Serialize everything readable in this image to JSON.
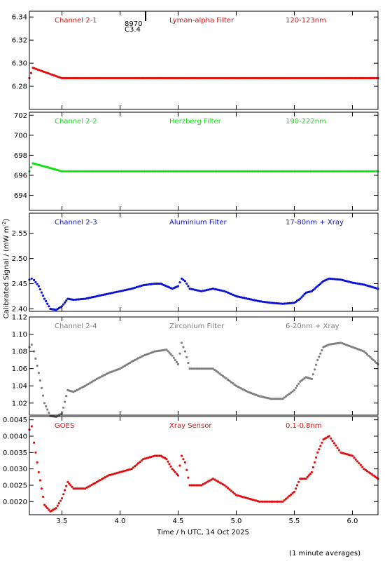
{
  "figure": {
    "ylabel": "Calibrated Signal / (mW m",
    "ylabel_sup": "-2",
    "ylabel_close": ")",
    "xlabel": "Time / h UTC, 14 Oct 2025",
    "footnote": "(1 minute averages)",
    "flare_label_1": "8970",
    "flare_label_2": "C3.4",
    "flare_time": 4.22
  },
  "x_axis": {
    "range": [
      3.22,
      6.22
    ],
    "ticks": [
      3.5,
      4.0,
      4.5,
      5.0,
      5.5,
      6.0
    ],
    "tick_labels": [
      "3.5",
      "4.0",
      "4.5",
      "5.0",
      "5.5",
      "6.0"
    ]
  },
  "chart_data": [
    {
      "type": "scatter",
      "labels": [
        "Channel 2-1",
        "Lyman-alpha Filter",
        "120-123nm"
      ],
      "color": "#e01010",
      "ylim": [
        6.26,
        6.345
      ],
      "yticks": [
        6.28,
        6.3,
        6.32,
        6.34
      ],
      "ytick_labels": [
        "6.28",
        "6.30",
        "6.32",
        "6.34"
      ],
      "x": [
        3.22,
        3.25,
        3.5,
        4.0,
        4.5,
        5.0,
        5.5,
        6.0,
        6.22
      ],
      "y": [
        6.287,
        6.296,
        6.287,
        6.287,
        6.287,
        6.287,
        6.287,
        6.287,
        6.287
      ]
    },
    {
      "type": "scatter",
      "labels": [
        "Channel 2-2",
        "Herzberg Filter",
        "190-222nm"
      ],
      "color": "#10e010",
      "ylim": [
        692.5,
        702.3
      ],
      "yticks": [
        694,
        696,
        698,
        700,
        702
      ],
      "ytick_labels": [
        "694",
        "696",
        "698",
        "700",
        "702"
      ],
      "x": [
        3.22,
        3.25,
        3.5,
        4.0,
        4.5,
        5.0,
        5.5,
        6.0,
        6.22
      ],
      "y": [
        696.4,
        697.2,
        696.4,
        696.4,
        696.4,
        696.4,
        696.4,
        696.4,
        696.4
      ]
    },
    {
      "type": "scatter",
      "labels": [
        "Channel 2-3",
        "Aluminium Filter",
        "17-80nm + Xray"
      ],
      "color": "#0a14d2",
      "ylim": [
        2.395,
        2.59
      ],
      "yticks": [
        2.4,
        2.45,
        2.5,
        2.55
      ],
      "ytick_labels": [
        "2.40",
        "2.45",
        "2.50",
        "2.55"
      ],
      "x": [
        3.22,
        3.24,
        3.26,
        3.3,
        3.35,
        3.4,
        3.45,
        3.5,
        3.55,
        3.6,
        3.7,
        3.8,
        3.9,
        4.0,
        4.1,
        4.2,
        4.3,
        4.35,
        4.4,
        4.45,
        4.5,
        4.53,
        4.56,
        4.6,
        4.7,
        4.8,
        4.9,
        5.0,
        5.1,
        5.2,
        5.3,
        5.4,
        5.5,
        5.55,
        5.6,
        5.65,
        5.7,
        5.75,
        5.8,
        5.9,
        6.0,
        6.1,
        6.22
      ],
      "y": [
        2.458,
        2.46,
        2.457,
        2.445,
        2.42,
        2.4,
        2.398,
        2.405,
        2.42,
        2.418,
        2.42,
        2.425,
        2.43,
        2.435,
        2.44,
        2.447,
        2.45,
        2.45,
        2.445,
        2.44,
        2.445,
        2.46,
        2.455,
        2.44,
        2.435,
        2.44,
        2.435,
        2.425,
        2.42,
        2.415,
        2.412,
        2.41,
        2.412,
        2.42,
        2.432,
        2.435,
        2.445,
        2.455,
        2.46,
        2.458,
        2.452,
        2.448,
        2.44
      ]
    },
    {
      "type": "scatter",
      "labels": [
        "Channel 2-4",
        "Zirconium Filter",
        "6-20nm + Xray"
      ],
      "color": "#7f7f7f",
      "ylim": [
        1.006,
        1.12
      ],
      "yticks": [
        1.02,
        1.04,
        1.06,
        1.08,
        1.1,
        1.12
      ],
      "ytick_labels": [
        "1.02",
        "1.04",
        "1.06",
        "1.08",
        "1.10",
        "1.12"
      ],
      "x": [
        3.22,
        3.24,
        3.26,
        3.3,
        3.35,
        3.4,
        3.45,
        3.5,
        3.55,
        3.6,
        3.7,
        3.8,
        3.9,
        4.0,
        4.1,
        4.2,
        4.3,
        4.4,
        4.45,
        4.5,
        4.53,
        4.56,
        4.6,
        4.7,
        4.8,
        4.9,
        5.0,
        5.1,
        5.2,
        5.3,
        5.4,
        5.5,
        5.55,
        5.6,
        5.65,
        5.7,
        5.75,
        5.8,
        5.9,
        6.0,
        6.1,
        6.22
      ],
      "y": [
        1.085,
        1.088,
        1.08,
        1.055,
        1.02,
        1.005,
        1.004,
        1.008,
        1.035,
        1.033,
        1.04,
        1.048,
        1.055,
        1.06,
        1.068,
        1.075,
        1.08,
        1.082,
        1.075,
        1.065,
        1.09,
        1.08,
        1.06,
        1.06,
        1.06,
        1.05,
        1.04,
        1.033,
        1.028,
        1.025,
        1.025,
        1.035,
        1.045,
        1.05,
        1.048,
        1.07,
        1.085,
        1.088,
        1.09,
        1.085,
        1.08,
        1.065
      ]
    },
    {
      "type": "scatter",
      "labels": [
        "GOES",
        "Xray Sensor",
        "0.1-0.8nm"
      ],
      "color": "#e01010",
      "ylim": [
        0.0016,
        0.0046
      ],
      "yticks": [
        0.002,
        0.0025,
        0.003,
        0.0035,
        0.004,
        0.0045
      ],
      "ytick_labels": [
        "0.0020",
        "0.0025",
        "0.0030",
        "0.0035",
        "0.0040",
        "0.0045"
      ],
      "x": [
        3.22,
        3.24,
        3.26,
        3.3,
        3.35,
        3.4,
        3.45,
        3.5,
        3.55,
        3.6,
        3.7,
        3.8,
        3.9,
        4.0,
        4.1,
        4.2,
        4.3,
        4.35,
        4.4,
        4.45,
        4.5,
        4.53,
        4.56,
        4.6,
        4.7,
        4.8,
        4.9,
        5.0,
        5.1,
        5.2,
        5.3,
        5.4,
        5.5,
        5.55,
        5.6,
        5.65,
        5.7,
        5.75,
        5.8,
        5.9,
        6.0,
        6.1,
        6.22
      ],
      "y": [
        0.0042,
        0.0043,
        0.0038,
        0.0029,
        0.0019,
        0.0017,
        0.0018,
        0.0021,
        0.0026,
        0.0024,
        0.0024,
        0.0026,
        0.0028,
        0.0029,
        0.003,
        0.0033,
        0.0034,
        0.0034,
        0.0033,
        0.003,
        0.0028,
        0.0034,
        0.0032,
        0.0025,
        0.0025,
        0.0027,
        0.0025,
        0.0022,
        0.0021,
        0.002,
        0.002,
        0.002,
        0.0023,
        0.0027,
        0.0027,
        0.0029,
        0.0035,
        0.0039,
        0.004,
        0.0035,
        0.0034,
        0.003,
        0.0027
      ]
    }
  ]
}
